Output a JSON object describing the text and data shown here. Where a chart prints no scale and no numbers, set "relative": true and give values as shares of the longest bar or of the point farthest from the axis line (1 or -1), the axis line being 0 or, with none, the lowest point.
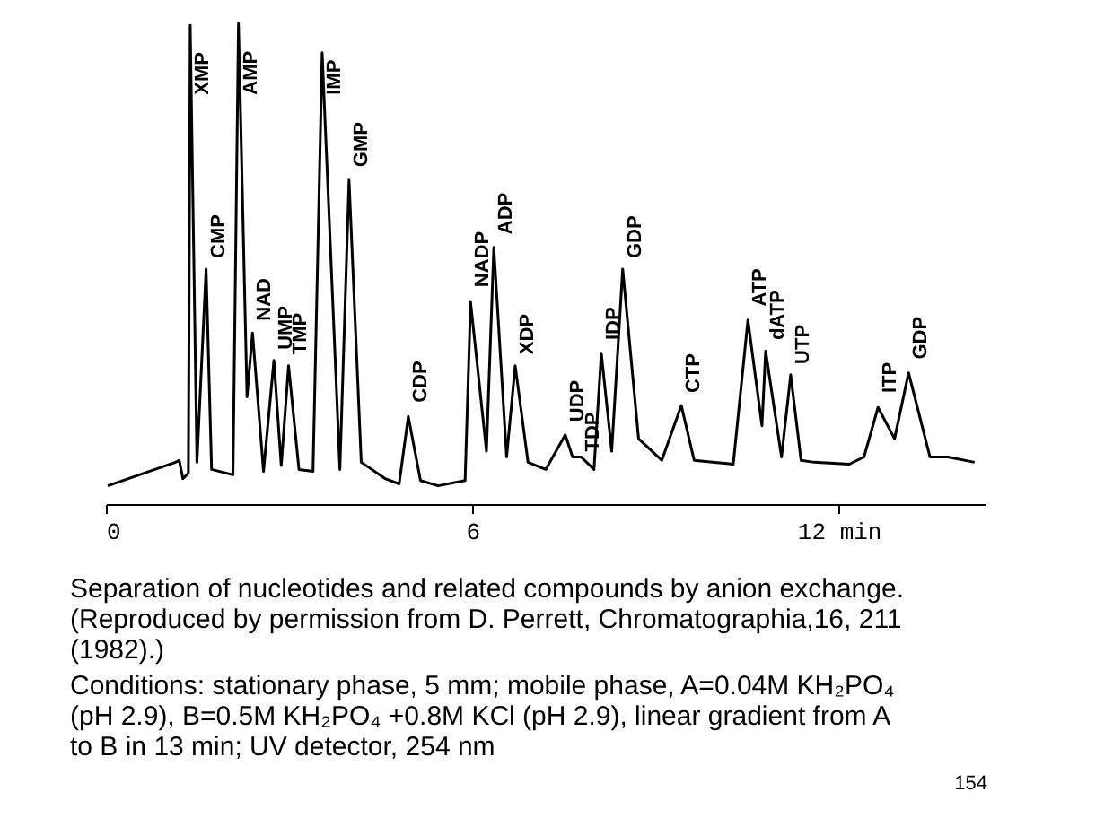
{
  "chart_data": {
    "type": "line",
    "relative": true,
    "xlim": [
      0,
      14.4
    ],
    "xticks": [
      0,
      6,
      {
        "value": 12,
        "label": "12 min"
      }
    ],
    "grid": false,
    "marker": "none",
    "line_style": "solid",
    "x": [
      0.03,
      1.14,
      1.2,
      1.26,
      1.35,
      1.38,
      1.49,
      1.64,
      1.73,
      2.08,
      2.17,
      2.31,
      2.4,
      2.58,
      2.75,
      2.87,
      2.99,
      3.16,
      3.39,
      3.54,
      3.83,
      3.98,
      4.18,
      4.57,
      4.8,
      4.95,
      5.15,
      5.44,
      5.88,
      5.97,
      6.23,
      6.35,
      6.56,
      6.7,
      6.91,
      7.2,
      7.52,
      7.64,
      7.78,
      7.99,
      8.11,
      8.28,
      8.46,
      8.72,
      9.1,
      9.42,
      9.63,
      10.27,
      10.51,
      10.74,
      10.8,
      11.06,
      11.21,
      11.38,
      11.59,
      12.17,
      12.41,
      12.64,
      12.91,
      13.14,
      13.49,
      13.78,
      14.22
    ],
    "series": [
      {
        "color": "#000000",
        "values": [
          0.038,
          0.087,
          0.091,
          0.053,
          0.064,
          0.996,
          0.087,
          0.489,
          0.072,
          0.061,
          1.0,
          0.223,
          0.356,
          0.068,
          0.299,
          0.08,
          0.288,
          0.072,
          0.068,
          0.939,
          0.072,
          0.674,
          0.087,
          0.053,
          0.042,
          0.182,
          0.049,
          0.038,
          0.049,
          0.42,
          0.11,
          0.534,
          0.098,
          0.288,
          0.087,
          0.072,
          0.144,
          0.098,
          0.098,
          0.072,
          0.314,
          0.11,
          0.489,
          0.136,
          0.091,
          0.205,
          0.091,
          0.083,
          0.383,
          0.163,
          0.318,
          0.098,
          0.269,
          0.091,
          0.087,
          0.083,
          0.098,
          0.201,
          0.136,
          0.273,
          0.098,
          0.098,
          0.087
        ]
      }
    ],
    "annotations": [
      {
        "text": "XMP",
        "x": 1.38,
        "y": 0.84
      },
      {
        "text": "CMP",
        "x": 1.64,
        "y": 0.5
      },
      {
        "text": "AMP",
        "x": 2.17,
        "y": 0.84
      },
      {
        "text": "NAD",
        "x": 2.4,
        "y": 0.37
      },
      {
        "text": "UMP",
        "x": 2.75,
        "y": 0.31
      },
      {
        "text": "TMP",
        "x": 2.99,
        "y": 0.3
      },
      {
        "text": "IMP",
        "x": 3.54,
        "y": 0.84
      },
      {
        "text": "GMP",
        "x": 3.98,
        "y": 0.69
      },
      {
        "text": "CDP",
        "x": 4.95,
        "y": 0.2
      },
      {
        "text": "NADP",
        "x": 5.97,
        "y": 0.44
      },
      {
        "text": "ADP",
        "x": 6.35,
        "y": 0.55
      },
      {
        "text": "XDP",
        "x": 6.7,
        "y": 0.3
      },
      {
        "text": "UDP",
        "x": 7.52,
        "y": 0.16
      },
      {
        "text": "TDP",
        "x": 7.78,
        "y": 0.098
      },
      {
        "text": "IDP",
        "x": 8.11,
        "y": 0.33
      },
      {
        "text": "GDP",
        "x": 8.46,
        "y": 0.5
      },
      {
        "text": "CTP",
        "x": 9.42,
        "y": 0.22
      },
      {
        "text": "ATP",
        "x": 10.51,
        "y": 0.4
      },
      {
        "text": "dATP",
        "x": 10.8,
        "y": 0.33
      },
      {
        "text": "UTP",
        "x": 11.21,
        "y": 0.28
      },
      {
        "text": "ITP",
        "x": 12.64,
        "y": 0.22
      },
      {
        "text": "GDP",
        "x": 13.14,
        "y": 0.29
      },
      "Separation of nucleotides and related compounds by anion exchange. (Reproduced by permission from D. Perrett, Chromatographia,16, 211 (1982).)",
      "Conditions: stationary phase, 5 mm; mobile phase, A=0.04M KH₂PO₄ (pH 2.9), B=0.5M KH₂PO₄ +0.8M KCl (pH 2.9), linear gradient from A to B in 13 min; UV detector, 254 nm",
      "154"
    ]
  }
}
